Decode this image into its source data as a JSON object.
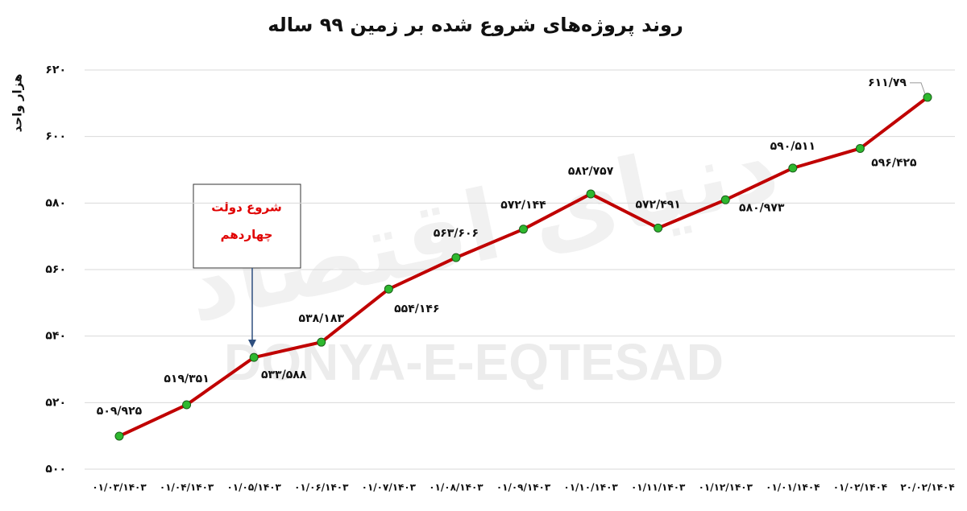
{
  "chart_data": {
    "type": "line",
    "title": "روند پروژه‌های شروع شده بر زمین ۹۹ ساله",
    "y_label": "هزار واحد",
    "annotation": [
      "شروع دولت",
      "چهاردهم"
    ],
    "watermark": [
      "DONYA-E-EQTESAD",
      "دنیای اقتصاد"
    ],
    "categories": [
      "۰۱/۰۳/۱۴۰۳",
      "۰۱/۰۴/۱۴۰۳",
      "۰۱/۰۵/۱۴۰۳",
      "۰۱/۰۶/۱۴۰۳",
      "۰۱/۰۷/۱۴۰۳",
      "۰۱/۰۸/۱۴۰۳",
      "۰۱/۰۹/۱۴۰۳",
      "۰۱/۱۰/۱۴۰۳",
      "۰۱/۱۱/۱۴۰۳",
      "۰۱/۱۲/۱۴۰۳",
      "۰۱/۰۱/۱۴۰۴",
      "۰۱/۰۲/۱۴۰۴",
      "۲۰/۰۲/۱۴۰۴"
    ],
    "series": [
      {
        "color": "#c00000",
        "marker_color": "#2eb82e",
        "values": [
          509.925,
          519.351,
          533.588,
          538.183,
          554.146,
          563.606,
          572.144,
          582.757,
          572.491,
          580.973,
          590.511,
          596.425,
          611.79
        ],
        "value_labels": [
          "۵۰۹/۹۲۵",
          "۵۱۹/۳۵۱",
          "۵۳۳/۵۸۸",
          "۵۳۸/۱۸۳",
          "۵۵۴/۱۴۶",
          "۵۶۳/۶۰۶",
          "۵۷۲/۱۴۴",
          "۵۸۲/۷۵۷",
          "۵۷۲/۴۹۱",
          "۵۸۰/۹۷۳",
          "۵۹۰/۵۱۱",
          "۵۹۶/۴۲۵",
          "۶۱۱/۷۹"
        ]
      }
    ],
    "ylim": [
      500,
      620
    ],
    "yticks": [
      {
        "value": 500,
        "label": "۵۰۰"
      },
      {
        "value": 520,
        "label": "۵۲۰"
      },
      {
        "value": 540,
        "label": "۵۴۰"
      },
      {
        "value": 560,
        "label": "۵۶۰"
      },
      {
        "value": 580,
        "label": "۵۸۰"
      },
      {
        "value": 600,
        "label": "۶۰۰"
      },
      {
        "value": 620,
        "label": "۶۲۰"
      }
    ],
    "grid": true
  }
}
